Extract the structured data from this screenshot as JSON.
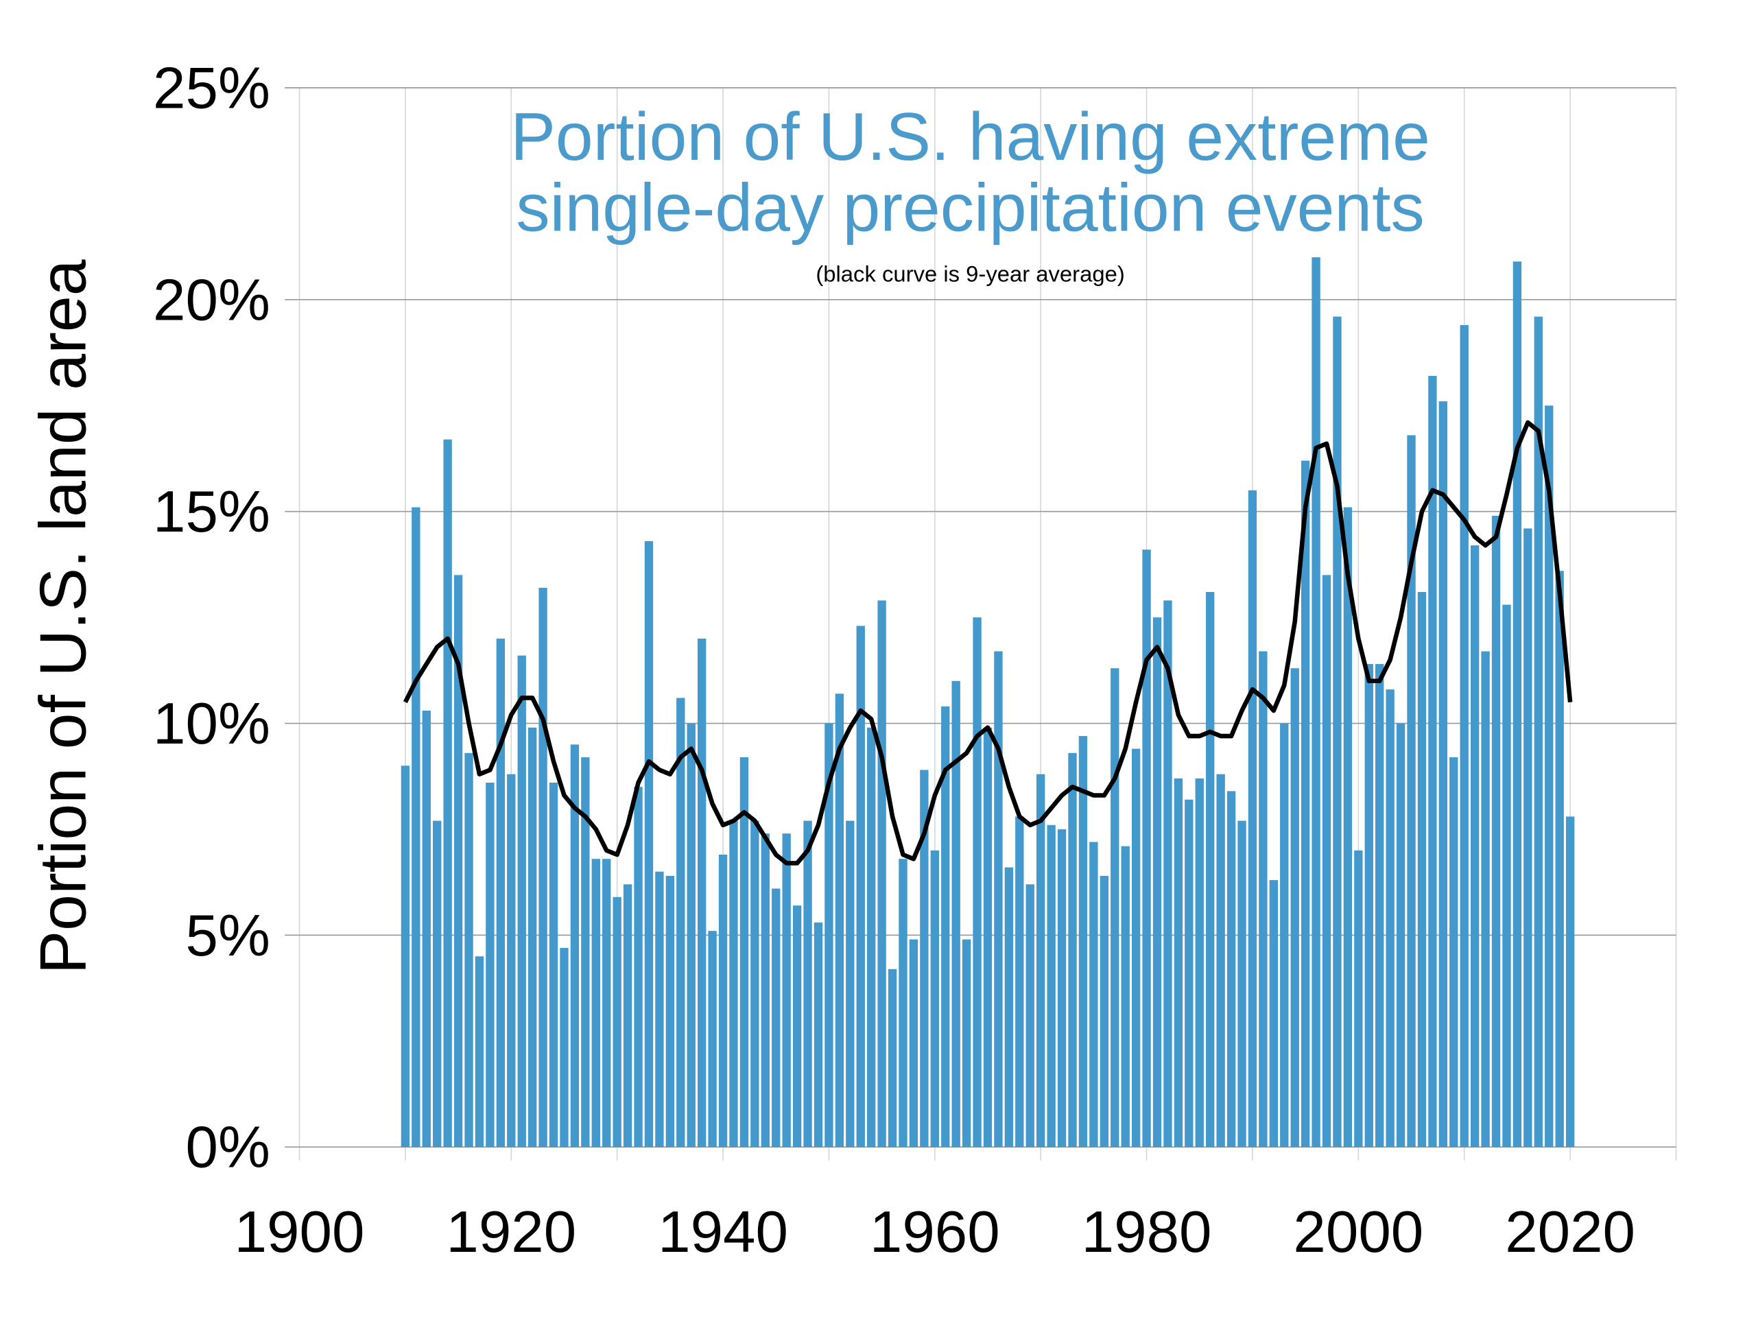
{
  "chart_data": {
    "type": "bar",
    "title": "Portion of U.S. having extreme single-day precipitation events",
    "title_lines": [
      "Portion of U.S. having extreme",
      "single-day precipitation events"
    ],
    "subtitle": "(black curve is 9-year average)",
    "xlabel": "",
    "ylabel": "Portion of U.S. land area",
    "xlim": [
      1900,
      2030
    ],
    "ylim": [
      0,
      25
    ],
    "x_ticks": [
      "1900",
      "1920",
      "1940",
      "1960",
      "1980",
      "2000",
      "2020"
    ],
    "x_tick_values": [
      1900,
      1920,
      1940,
      1960,
      1980,
      2000,
      2020
    ],
    "y_ticks": [
      "0%",
      "5%",
      "10%",
      "15%",
      "20%",
      "25%"
    ],
    "y_tick_values": [
      0,
      5,
      10,
      15,
      20,
      25
    ],
    "grid": true,
    "colors": {
      "bars": "#4398cc",
      "title": "#4a9acb",
      "curve": "#000000",
      "grid_major": "#999999",
      "grid_minor": "#d6d6d6"
    },
    "x": [
      1910,
      1911,
      1912,
      1913,
      1914,
      1915,
      1916,
      1917,
      1918,
      1919,
      1920,
      1921,
      1922,
      1923,
      1924,
      1925,
      1926,
      1927,
      1928,
      1929,
      1930,
      1931,
      1932,
      1933,
      1934,
      1935,
      1936,
      1937,
      1938,
      1939,
      1940,
      1941,
      1942,
      1943,
      1944,
      1945,
      1946,
      1947,
      1948,
      1949,
      1950,
      1951,
      1952,
      1953,
      1954,
      1955,
      1956,
      1957,
      1958,
      1959,
      1960,
      1961,
      1962,
      1963,
      1964,
      1965,
      1966,
      1967,
      1968,
      1969,
      1970,
      1971,
      1972,
      1973,
      1974,
      1975,
      1976,
      1977,
      1978,
      1979,
      1980,
      1981,
      1982,
      1983,
      1984,
      1985,
      1986,
      1987,
      1988,
      1989,
      1990,
      1991,
      1992,
      1993,
      1994,
      1995,
      1996,
      1997,
      1998,
      1999,
      2000,
      2001,
      2002,
      2003,
      2004,
      2005,
      2006,
      2007,
      2008,
      2009,
      2010,
      2011,
      2012,
      2013,
      2014,
      2015,
      2016,
      2017,
      2018,
      2019,
      2020
    ],
    "series": [
      {
        "type": "bar",
        "values": [
          9.0,
          15.1,
          10.3,
          7.7,
          16.7,
          13.5,
          9.3,
          4.5,
          8.6,
          12.0,
          8.8,
          11.6,
          9.9,
          13.2,
          8.6,
          4.7,
          9.5,
          9.2,
          6.8,
          6.8,
          5.9,
          6.2,
          8.5,
          14.3,
          6.5,
          6.4,
          10.6,
          10.0,
          12.0,
          5.1,
          6.9,
          7.7,
          9.2,
          7.7,
          7.4,
          6.1,
          7.4,
          5.7,
          7.7,
          5.3,
          10.0,
          10.7,
          7.7,
          12.3,
          9.9,
          12.9,
          4.2,
          6.8,
          4.9,
          8.9,
          7.0,
          10.4,
          11.0,
          4.9,
          12.5,
          9.9,
          11.7,
          6.6,
          7.8,
          6.2,
          8.8,
          7.6,
          7.5,
          9.3,
          9.7,
          7.2,
          6.4,
          11.3,
          7.1,
          9.4,
          14.1,
          12.5,
          12.9,
          8.7,
          8.2,
          8.7,
          13.1,
          8.8,
          8.4,
          7.7,
          15.5,
          11.7,
          6.3,
          10.0,
          11.3,
          16.2,
          21.0,
          13.5,
          19.6,
          15.1,
          7.0,
          11.4,
          11.4,
          10.8,
          10.0,
          16.8,
          13.1,
          18.2,
          17.6,
          9.2,
          19.4,
          14.2,
          11.7,
          14.9,
          12.8,
          20.9,
          14.6,
          19.6,
          17.5,
          13.6,
          7.8
        ]
      },
      {
        "type": "line",
        "values": [
          10.5,
          11.0,
          11.4,
          11.8,
          12.0,
          11.4,
          10.0,
          8.8,
          8.9,
          9.5,
          10.2,
          10.6,
          10.6,
          10.1,
          9.1,
          8.3,
          8.0,
          7.8,
          7.5,
          7.0,
          6.9,
          7.6,
          8.6,
          9.1,
          8.9,
          8.8,
          9.2,
          9.4,
          8.9,
          8.1,
          7.6,
          7.7,
          7.9,
          7.7,
          7.3,
          6.9,
          6.7,
          6.7,
          7.0,
          7.6,
          8.6,
          9.4,
          9.9,
          10.3,
          10.1,
          9.2,
          7.8,
          6.9,
          6.8,
          7.4,
          8.3,
          8.9,
          9.1,
          9.3,
          9.7,
          9.9,
          9.4,
          8.5,
          7.8,
          7.6,
          7.7,
          8.0,
          8.3,
          8.5,
          8.4,
          8.3,
          8.3,
          8.7,
          9.4,
          10.5,
          11.5,
          11.8,
          11.3,
          10.2,
          9.7,
          9.7,
          9.8,
          9.7,
          9.7,
          10.3,
          10.8,
          10.6,
          10.3,
          10.9,
          12.4,
          15.1,
          16.5,
          16.6,
          15.6,
          13.5,
          12.0,
          11.0,
          11.0,
          11.5,
          12.5,
          13.8,
          15.0,
          15.5,
          15.4,
          15.1,
          14.8,
          14.4,
          14.2,
          14.4,
          15.4,
          16.5,
          17.1,
          16.9,
          15.5,
          13.1,
          10.5
        ]
      }
    ]
  }
}
